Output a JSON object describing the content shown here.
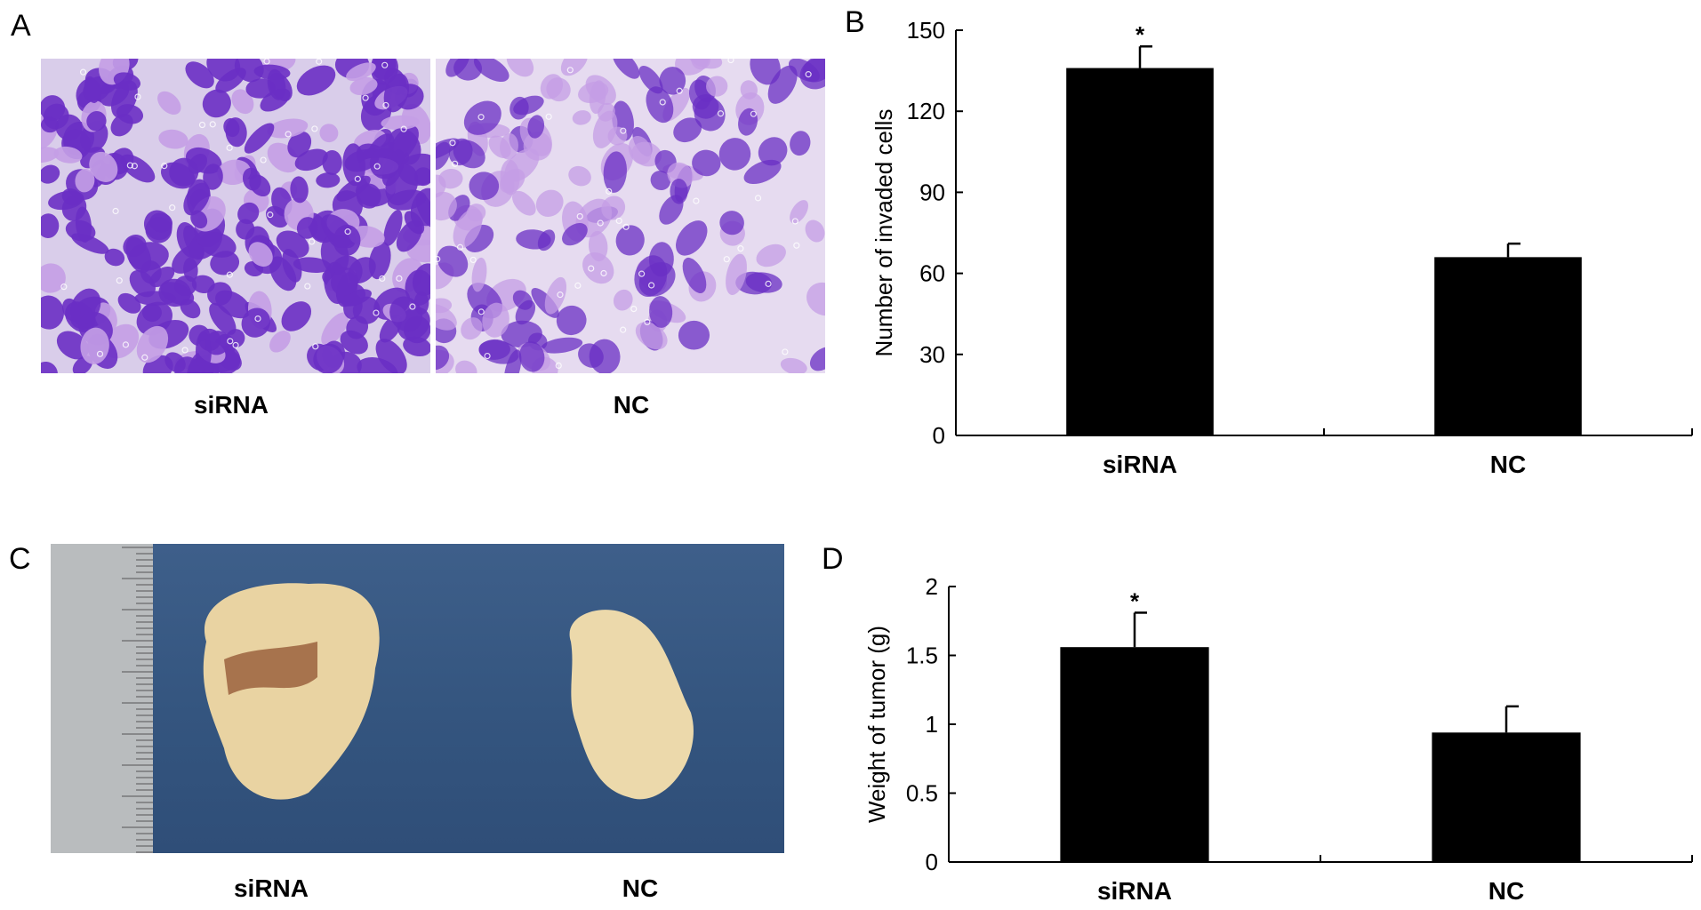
{
  "panels": {
    "a": {
      "letter": "A",
      "left_label": "siRNA",
      "right_label": "NC"
    },
    "b": {
      "letter": "B"
    },
    "c": {
      "letter": "C",
      "left_label": "siRNA",
      "right_label": "NC"
    },
    "d": {
      "letter": "D"
    }
  },
  "colors": {
    "bar": "#000000",
    "stain_dark": "#6a2fc4",
    "stain_light": "#c49ee6",
    "background_photo": "#3a5a86",
    "tissue": "#e9d3a2"
  },
  "chart_data": [
    {
      "type": "bar",
      "panel": "B",
      "categories": [
        "siRNA",
        "NC"
      ],
      "values": [
        136,
        66
      ],
      "errors": [
        8,
        5
      ],
      "significance": [
        "*",
        ""
      ],
      "ylabel": "Number of invaded cells",
      "xlabel": "",
      "ylim": [
        0,
        150
      ],
      "yticks": [
        0,
        30,
        60,
        90,
        120,
        150
      ],
      "grid": false
    },
    {
      "type": "bar",
      "panel": "D",
      "categories": [
        "siRNA",
        "NC"
      ],
      "values": [
        1.56,
        0.94
      ],
      "errors": [
        0.25,
        0.19
      ],
      "significance": [
        "*",
        ""
      ],
      "ylabel": "Weight of tumor (g)",
      "xlabel": "",
      "ylim": [
        0,
        2
      ],
      "yticks": [
        0,
        0.5,
        1,
        1.5,
        2
      ],
      "grid": false
    }
  ]
}
